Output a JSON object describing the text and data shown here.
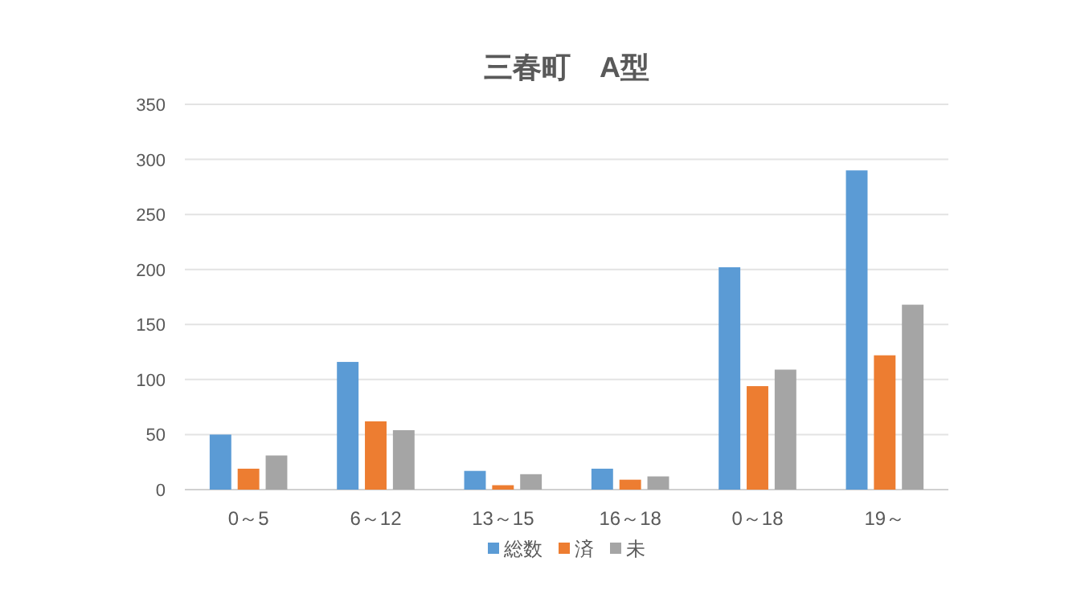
{
  "chart_data": {
    "type": "bar",
    "title": "三春町　A型",
    "categories": [
      "0～5",
      "6～12",
      "13～15",
      "16～18",
      "0～18",
      "19～"
    ],
    "series": [
      {
        "name": "総数",
        "color": "#5b9bd5",
        "values": [
          50,
          116,
          17,
          19,
          202,
          290
        ]
      },
      {
        "name": "済",
        "color": "#ed7d31",
        "values": [
          19,
          62,
          4,
          9,
          94,
          122
        ]
      },
      {
        "name": "未",
        "color": "#a5a5a5",
        "values": [
          31,
          54,
          14,
          12,
          109,
          168
        ]
      }
    ],
    "ylim": [
      0,
      350
    ],
    "yticks": [
      0,
      50,
      100,
      150,
      200,
      250,
      300,
      350
    ],
    "grid": "y",
    "legend": "bottom"
  }
}
